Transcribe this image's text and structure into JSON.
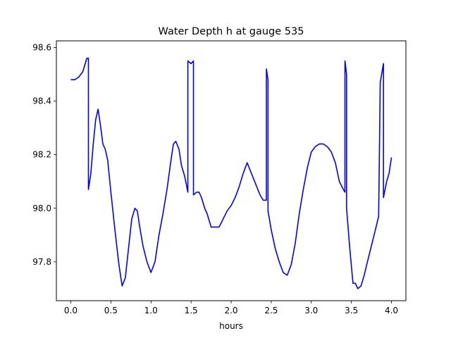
{
  "chart_data": {
    "type": "line",
    "title": "Water Depth h at gauge 535",
    "xlabel": "hours",
    "ylabel": "",
    "xlim": [
      -0.18,
      4.18
    ],
    "ylim": [
      97.655,
      98.625
    ],
    "xticks": [
      0.0,
      0.5,
      1.0,
      1.5,
      2.0,
      2.5,
      3.0,
      3.5,
      4.0
    ],
    "xtick_labels": [
      "0.0",
      "0.5",
      "1.0",
      "1.5",
      "2.0",
      "2.5",
      "3.0",
      "3.5",
      "4.0"
    ],
    "yticks": [
      97.8,
      98.0,
      98.2,
      98.4,
      98.6
    ],
    "ytick_labels": [
      "97.8",
      "98.0",
      "98.2",
      "98.4",
      "98.6"
    ],
    "grid": false,
    "legend": "none",
    "series": [
      {
        "color": "#0000ff",
        "x": [
          0.0,
          0.05,
          0.1,
          0.15,
          0.2,
          0.22,
          0.22,
          0.25,
          0.28,
          0.31,
          0.34,
          0.37,
          0.4,
          0.43,
          0.46,
          0.5,
          0.55,
          0.6,
          0.64,
          0.68,
          0.72,
          0.76,
          0.8,
          0.83,
          0.86,
          0.9,
          0.95,
          1.0,
          1.05,
          1.1,
          1.15,
          1.2,
          1.25,
          1.28,
          1.31,
          1.35,
          1.38,
          1.42,
          1.46,
          1.46,
          1.5,
          1.53,
          1.53,
          1.57,
          1.6,
          1.63,
          1.67,
          1.7,
          1.75,
          1.8,
          1.85,
          1.9,
          1.95,
          2.0,
          2.05,
          2.1,
          2.15,
          2.2,
          2.24,
          2.28,
          2.32,
          2.36,
          2.4,
          2.44,
          2.44,
          2.46,
          2.46,
          2.5,
          2.55,
          2.6,
          2.65,
          2.7,
          2.75,
          2.8,
          2.85,
          2.9,
          2.95,
          3.0,
          3.05,
          3.1,
          3.15,
          3.2,
          3.25,
          3.3,
          3.35,
          3.4,
          3.42,
          3.42,
          3.44,
          3.44,
          3.48,
          3.52,
          3.55,
          3.58,
          3.62,
          3.66,
          3.7,
          3.75,
          3.8,
          3.84,
          3.86,
          3.86,
          3.9,
          3.9,
          3.94,
          3.97,
          4.0
        ],
        "values": [
          98.48,
          98.48,
          98.49,
          98.51,
          98.56,
          98.56,
          98.07,
          98.13,
          98.24,
          98.33,
          98.37,
          98.31,
          98.24,
          98.22,
          98.18,
          98.06,
          97.92,
          97.79,
          97.71,
          97.74,
          97.85,
          97.96,
          98.0,
          97.99,
          97.93,
          97.86,
          97.8,
          97.76,
          97.8,
          97.9,
          97.98,
          98.07,
          98.18,
          98.24,
          98.25,
          98.22,
          98.16,
          98.12,
          98.06,
          98.55,
          98.54,
          98.55,
          98.05,
          98.06,
          98.06,
          98.04,
          98.0,
          97.98,
          97.93,
          97.93,
          97.93,
          97.96,
          97.99,
          98.01,
          98.04,
          98.08,
          98.13,
          98.17,
          98.14,
          98.11,
          98.08,
          98.05,
          98.03,
          98.03,
          98.52,
          98.48,
          97.99,
          97.92,
          97.85,
          97.8,
          97.76,
          97.75,
          97.79,
          97.87,
          97.98,
          98.07,
          98.15,
          98.21,
          98.23,
          98.24,
          98.24,
          98.23,
          98.21,
          98.17,
          98.1,
          98.07,
          98.06,
          98.55,
          98.5,
          98.0,
          97.85,
          97.72,
          97.72,
          97.7,
          97.71,
          97.75,
          97.8,
          97.86,
          97.92,
          97.97,
          98.47,
          98.47,
          98.54,
          98.04,
          98.1,
          98.13,
          98.19
        ]
      }
    ]
  }
}
